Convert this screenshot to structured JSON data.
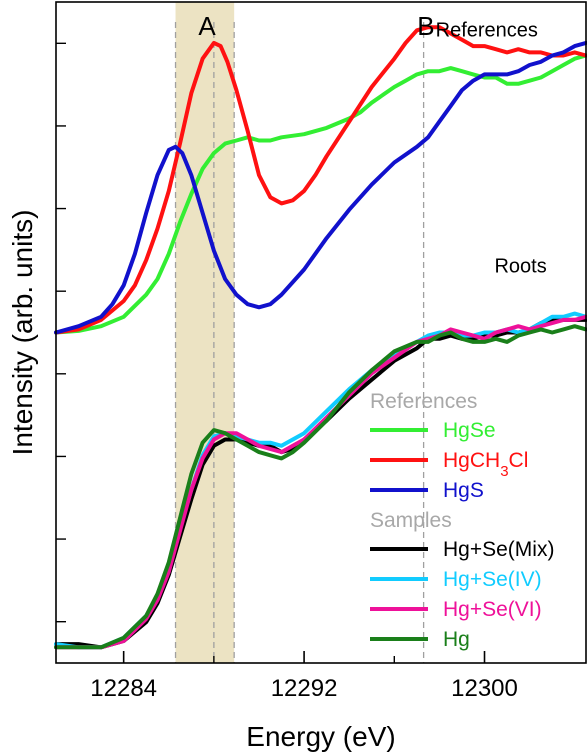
{
  "chart_data": {
    "type": "line",
    "xlabel": "Energy (eV)",
    "ylabel": "Intensity (arb. units)",
    "xlim": [
      12281,
      12304.5
    ],
    "ylim": [
      -0.05,
      2.05
    ],
    "x_ticks": [
      12284,
      12292,
      12300
    ],
    "x_minor_ticks": [
      12288,
      12296
    ],
    "y_ticks_count": 8,
    "y_tick_labels": false,
    "band": {
      "x0": 12286.3,
      "x1": 12288.9,
      "color": "#ece3c3",
      "label": "A"
    },
    "dashed_lines": [
      12286.3,
      12288.0,
      12288.9,
      12297.3
    ],
    "region_labels": [
      {
        "text": "A",
        "x": 12287.7
      },
      {
        "text": "B",
        "x": 12297.4
      }
    ],
    "group_labels": [
      {
        "text": "References",
        "x": 12300.1,
        "y": 1.94
      },
      {
        "text": "Roots",
        "x": 12301.6,
        "y": 1.19
      }
    ],
    "legend": {
      "position": "bottom-right",
      "groups": [
        {
          "title": "References",
          "title_color": "#a8a8a8",
          "items": [
            {
              "text": "HgSe",
              "color": "#33ee33"
            },
            {
              "text": "HgCH",
              "sub": "3",
              "after": "Cl",
              "color": "#ff1111"
            },
            {
              "text": "HgS",
              "color": "#1111cc"
            }
          ]
        },
        {
          "title": "Samples",
          "title_color": "#a8a8a8",
          "items": [
            {
              "text": "Hg+Se(Mix)",
              "color": "#000000"
            },
            {
              "text": "Hg+Se(IV)",
              "color": "#11ccff"
            },
            {
              "text": "Hg+Se(VI)",
              "color": "#ee1199"
            },
            {
              "text": "Hg",
              "color": "#1a7f1a"
            }
          ]
        }
      ]
    },
    "series": [
      {
        "name": "HgSe",
        "color": "#33ee33",
        "group": "References",
        "x": [
          12281,
          12282,
          12283,
          12284,
          12285,
          12285.5,
          12286,
          12286.5,
          12287,
          12287.5,
          12288,
          12288.5,
          12289,
          12289.5,
          12290,
          12290.5,
          12291,
          12292,
          12293,
          12294,
          12294.5,
          12295,
          12296,
          12296.5,
          12297,
          12297.5,
          12298,
          12298.5,
          12299,
          12299.5,
          12300,
          12300.5,
          12301,
          12301.5,
          12302,
          12302.5,
          12303,
          12303.5,
          12304,
          12304.5
        ],
        "y": [
          1.0,
          1.005,
          1.02,
          1.05,
          1.12,
          1.17,
          1.25,
          1.35,
          1.44,
          1.52,
          1.57,
          1.6,
          1.61,
          1.62,
          1.61,
          1.61,
          1.62,
          1.63,
          1.65,
          1.68,
          1.7,
          1.73,
          1.78,
          1.8,
          1.82,
          1.83,
          1.83,
          1.84,
          1.83,
          1.82,
          1.81,
          1.81,
          1.79,
          1.79,
          1.8,
          1.81,
          1.83,
          1.85,
          1.87,
          1.88
        ]
      },
      {
        "name": "HgCH3Cl",
        "color": "#ff1111",
        "group": "References",
        "x": [
          12281,
          12282,
          12283,
          12284,
          12284.5,
          12285,
          12285.5,
          12286,
          12286.5,
          12287,
          12287.5,
          12288,
          12288.3,
          12288.6,
          12289,
          12289.5,
          12290,
          12290.5,
          12291,
          12291.5,
          12292,
          12292.5,
          12293,
          12294,
          12295,
          12296,
          12296.5,
          12297,
          12297.5,
          12298,
          12298.5,
          12299,
          12299.5,
          12300,
          12300.5,
          12301,
          12301.5,
          12302,
          12302.5,
          12303,
          12303.5,
          12304,
          12304.5
        ],
        "y": [
          1.0,
          1.01,
          1.04,
          1.1,
          1.15,
          1.23,
          1.33,
          1.45,
          1.6,
          1.76,
          1.87,
          1.92,
          1.91,
          1.86,
          1.77,
          1.64,
          1.5,
          1.43,
          1.41,
          1.42,
          1.45,
          1.5,
          1.56,
          1.67,
          1.78,
          1.87,
          1.92,
          1.96,
          1.97,
          1.97,
          1.95,
          1.93,
          1.91,
          1.91,
          1.9,
          1.89,
          1.9,
          1.89,
          1.89,
          1.88,
          1.88,
          1.89,
          1.88
        ]
      },
      {
        "name": "HgS",
        "color": "#1111cc",
        "group": "References",
        "x": [
          12281,
          12282,
          12283,
          12283.5,
          12284,
          12284.5,
          12285,
          12285.5,
          12286,
          12286.3,
          12286.6,
          12287,
          12287.5,
          12288,
          12288.5,
          12289,
          12289.5,
          12290,
          12290.5,
          12291,
          12292,
          12293,
          12294,
          12295,
          12296,
          12297,
          12297.5,
          12298,
          12298.5,
          12299,
          12299.5,
          12300,
          12300.5,
          12301,
          12301.5,
          12302,
          12302.5,
          12303,
          12303.5,
          12304,
          12304.5
        ],
        "y": [
          1.0,
          1.02,
          1.05,
          1.09,
          1.15,
          1.25,
          1.38,
          1.5,
          1.58,
          1.59,
          1.57,
          1.5,
          1.38,
          1.26,
          1.17,
          1.12,
          1.09,
          1.08,
          1.09,
          1.12,
          1.2,
          1.3,
          1.39,
          1.47,
          1.54,
          1.59,
          1.62,
          1.67,
          1.72,
          1.77,
          1.8,
          1.82,
          1.82,
          1.82,
          1.83,
          1.85,
          1.86,
          1.88,
          1.89,
          1.91,
          1.92
        ]
      },
      {
        "name": "Hg+Se(Mix)",
        "color": "#000000",
        "group": "Samples",
        "x": [
          12281,
          12282,
          12283,
          12284,
          12285,
          12285.5,
          12286,
          12286.5,
          12287,
          12287.5,
          12288,
          12288.5,
          12289,
          12289.5,
          12290,
          12290.5,
          12291,
          12291.5,
          12292,
          12293,
          12294,
          12295,
          12296,
          12297,
          12297.5,
          12298,
          12298.5,
          12299,
          12299.5,
          12300,
          12300.5,
          12301,
          12301.5,
          12302,
          12302.5,
          12303,
          12303.5,
          12304,
          12304.5
        ],
        "y": [
          0.01,
          0.01,
          0.0,
          0.02,
          0.08,
          0.14,
          0.23,
          0.35,
          0.47,
          0.58,
          0.64,
          0.66,
          0.66,
          0.65,
          0.64,
          0.64,
          0.62,
          0.63,
          0.66,
          0.72,
          0.79,
          0.85,
          0.91,
          0.95,
          0.98,
          0.98,
          0.99,
          0.98,
          0.98,
          0.99,
          0.99,
          1.0,
          1.0,
          1.01,
          1.03,
          1.04,
          1.04,
          1.04,
          1.04
        ]
      },
      {
        "name": "Hg+Se(IV)",
        "color": "#11ccff",
        "group": "Samples",
        "x": [
          12281,
          12282,
          12283,
          12284,
          12285,
          12285.5,
          12286,
          12286.5,
          12287,
          12287.5,
          12288,
          12288.5,
          12289,
          12289.5,
          12290,
          12290.5,
          12291,
          12291.5,
          12292,
          12293,
          12294,
          12295,
          12296,
          12297,
          12297.5,
          12298,
          12298.5,
          12299,
          12299.5,
          12300,
          12300.5,
          12301,
          12301.5,
          12302,
          12302.5,
          12303,
          12303.5,
          12304,
          12304.5
        ],
        "y": [
          0.01,
          0.0,
          0.0,
          0.03,
          0.1,
          0.16,
          0.25,
          0.38,
          0.5,
          0.61,
          0.67,
          0.68,
          0.67,
          0.66,
          0.65,
          0.65,
          0.64,
          0.66,
          0.68,
          0.75,
          0.82,
          0.88,
          0.93,
          0.97,
          0.99,
          1.0,
          1.0,
          0.99,
          0.99,
          1.0,
          1.0,
          1.01,
          1.0,
          1.01,
          1.03,
          1.05,
          1.05,
          1.06,
          1.05
        ]
      },
      {
        "name": "Hg+Se(VI)",
        "color": "#ee1199",
        "group": "Samples",
        "x": [
          12281,
          12282,
          12283,
          12284,
          12285,
          12285.5,
          12286,
          12286.5,
          12287,
          12287.5,
          12288,
          12288.5,
          12289,
          12289.5,
          12290,
          12290.5,
          12291,
          12291.5,
          12292,
          12293,
          12294,
          12295,
          12296,
          12297,
          12297.5,
          12298,
          12298.5,
          12299,
          12299.5,
          12300,
          12300.5,
          12301,
          12301.5,
          12302,
          12302.5,
          12303,
          12303.5,
          12304,
          12304.5
        ],
        "y": [
          0.0,
          0.0,
          0.0,
          0.02,
          0.09,
          0.15,
          0.24,
          0.37,
          0.5,
          0.6,
          0.66,
          0.68,
          0.68,
          0.66,
          0.64,
          0.63,
          0.62,
          0.64,
          0.66,
          0.73,
          0.8,
          0.87,
          0.92,
          0.97,
          0.98,
          0.99,
          1.01,
          1.0,
          0.99,
          0.98,
          1.0,
          1.01,
          1.02,
          1.01,
          1.02,
          1.03,
          1.04,
          1.04,
          1.05
        ]
      },
      {
        "name": "Hg",
        "color": "#1a7f1a",
        "group": "Samples",
        "x": [
          12281,
          12282,
          12283,
          12284,
          12285,
          12285.5,
          12286,
          12286.5,
          12287,
          12287.5,
          12288,
          12288.5,
          12289,
          12289.5,
          12290,
          12290.5,
          12291,
          12291.5,
          12292,
          12293,
          12294,
          12295,
          12296,
          12297,
          12297.5,
          12298,
          12298.5,
          12299,
          12299.5,
          12300,
          12300.5,
          12301,
          12301.5,
          12302,
          12302.5,
          12303,
          12303.5,
          12304,
          12304.5
        ],
        "y": [
          0.0,
          0.0,
          0.0,
          0.03,
          0.1,
          0.17,
          0.27,
          0.41,
          0.55,
          0.65,
          0.69,
          0.68,
          0.66,
          0.64,
          0.62,
          0.61,
          0.6,
          0.62,
          0.65,
          0.72,
          0.81,
          0.88,
          0.94,
          0.97,
          0.97,
          0.99,
          1.0,
          0.98,
          0.97,
          0.97,
          0.98,
          0.97,
          0.99,
          1.0,
          1.01,
          1.0,
          1.01,
          1.02,
          1.01
        ]
      }
    ]
  }
}
